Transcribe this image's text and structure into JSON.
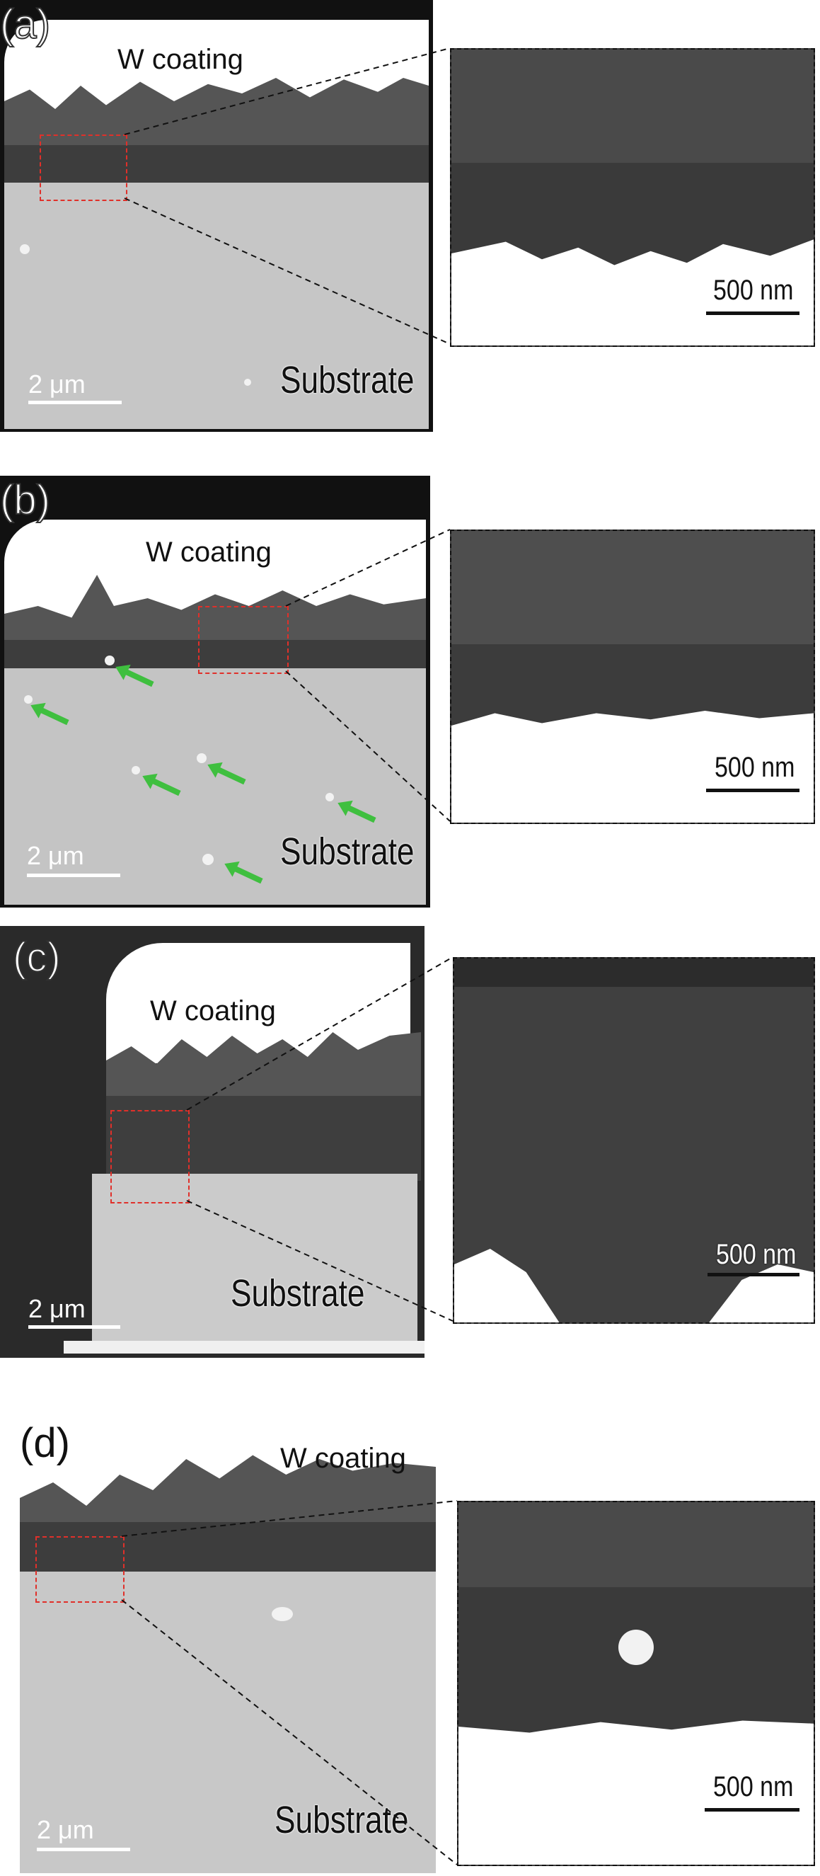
{
  "panels": [
    {
      "label": "(a)",
      "coating": "W coating",
      "substrate": "Substrate",
      "scale_main": "2 μm",
      "scale_inset": "500 nm"
    },
    {
      "label": "(b)",
      "coating": "W coating",
      "substrate": "Substrate",
      "scale_main": "2 μm",
      "scale_inset": "500 nm"
    },
    {
      "label": "(c)",
      "coating": "W coating",
      "substrate": "Substrate",
      "scale_main": "2 μm",
      "scale_inset": "500 nm"
    },
    {
      "label": "(d)",
      "coating": "W coating",
      "substrate": "Substrate",
      "scale_main": "2 μm",
      "scale_inset": "500 nm"
    }
  ],
  "colors": {
    "roi": "#e0302a",
    "arrow": "#3fbf3f",
    "coating": "#ffffff",
    "oxide": "#444444",
    "substrate": "#c4c4c4"
  }
}
